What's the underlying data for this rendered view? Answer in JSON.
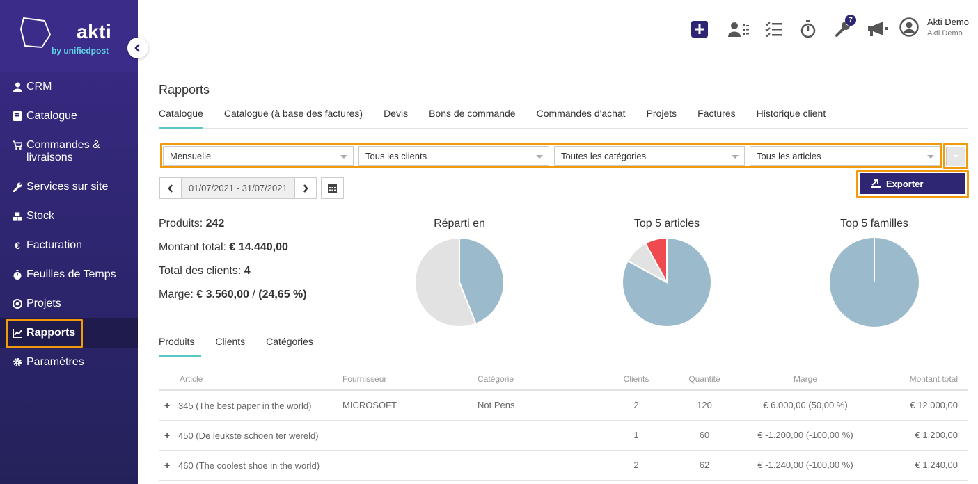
{
  "brand": {
    "name": "akti",
    "tagline": "by unifiedpost"
  },
  "sidebar": {
    "items": [
      {
        "label": "CRM",
        "icon": "user-icon"
      },
      {
        "label": "Catalogue",
        "icon": "book-icon"
      },
      {
        "label": "Commandes & livraisons",
        "icon": "cart-icon"
      },
      {
        "label": "Services sur site",
        "icon": "wrench-icon"
      },
      {
        "label": "Stock",
        "icon": "cubes-icon"
      },
      {
        "label": "Facturation",
        "icon": "euro-icon"
      },
      {
        "label": "Feuilles de Temps",
        "icon": "stopwatch-icon"
      },
      {
        "label": "Projets",
        "icon": "target-icon"
      },
      {
        "label": "Rapports",
        "icon": "line-chart-icon",
        "active": true
      },
      {
        "label": "Paramètres",
        "icon": "gear-icon"
      }
    ]
  },
  "header": {
    "notifications_badge": "7",
    "user": {
      "name": "Akti Demo",
      "company": "Akti Demo"
    }
  },
  "page": {
    "title": "Rapports",
    "tabs": [
      "Catalogue",
      "Catalogue (à base des factures)",
      "Devis",
      "Bons de commande",
      "Commandes d'achat",
      "Projets",
      "Factures",
      "Historique client"
    ],
    "active_tab": "Catalogue"
  },
  "filters": {
    "period": "Mensuelle",
    "clients": "Tous les clients",
    "categories": "Toutes les catégories",
    "articles": "Tous les articles"
  },
  "export": {
    "label": "Exporter"
  },
  "date_range": "01/07/2021 - 31/07/2021",
  "stats": {
    "produits_label": "Produits:",
    "produits_value": "242",
    "montant_label": "Montant total:",
    "montant_value": "€ 14.440,00",
    "clients_label": "Total des clients:",
    "clients_value": "4",
    "marge_label": "Marge:",
    "marge_value": "€ 3.560,00",
    "marge_sep": "/",
    "marge_pct": "(24,65 %)"
  },
  "chart_data": [
    {
      "type": "pie",
      "title": "Réparti en",
      "values": [
        44,
        56
      ],
      "colors": [
        "#9bbacb",
        "#e2e2e2"
      ]
    },
    {
      "type": "pie",
      "title": "Top 5 articles",
      "values": [
        83,
        9,
        8
      ],
      "colors": [
        "#9bbacb",
        "#e2e2e2",
        "#f04a51"
      ]
    },
    {
      "type": "pie",
      "title": "Top 5 familles",
      "values": [
        100
      ],
      "colors": [
        "#9bbacb"
      ]
    }
  ],
  "subtabs": {
    "items": [
      "Produits",
      "Clients",
      "Catégories"
    ],
    "active": "Produits"
  },
  "table": {
    "columns": [
      "Article",
      "Fournisseur",
      "Catégorie",
      "Clients",
      "Quantité",
      "Marge",
      "Montant total"
    ],
    "rows": [
      {
        "article": "345 (The best paper in the world)",
        "fournisseur": "MICROSOFT",
        "categorie": "Not Pens",
        "clients": "2",
        "quantite": "120",
        "marge": "€ 6.000,00 (50,00 %)",
        "montant": "€ 12.000,00"
      },
      {
        "article": "450 (De leukste schoen ter wereld)",
        "fournisseur": "",
        "categorie": "",
        "clients": "1",
        "quantite": "60",
        "marge": "€ -1.200,00 (-100,00 %)",
        "montant": "€ 1.200,00"
      },
      {
        "article": "460 (The coolest shoe in the world)",
        "fournisseur": "",
        "categorie": "",
        "clients": "2",
        "quantite": "62",
        "marge": "€ -1.240,00 (-100,00 %)",
        "montant": "€ 1.240,00"
      }
    ]
  }
}
